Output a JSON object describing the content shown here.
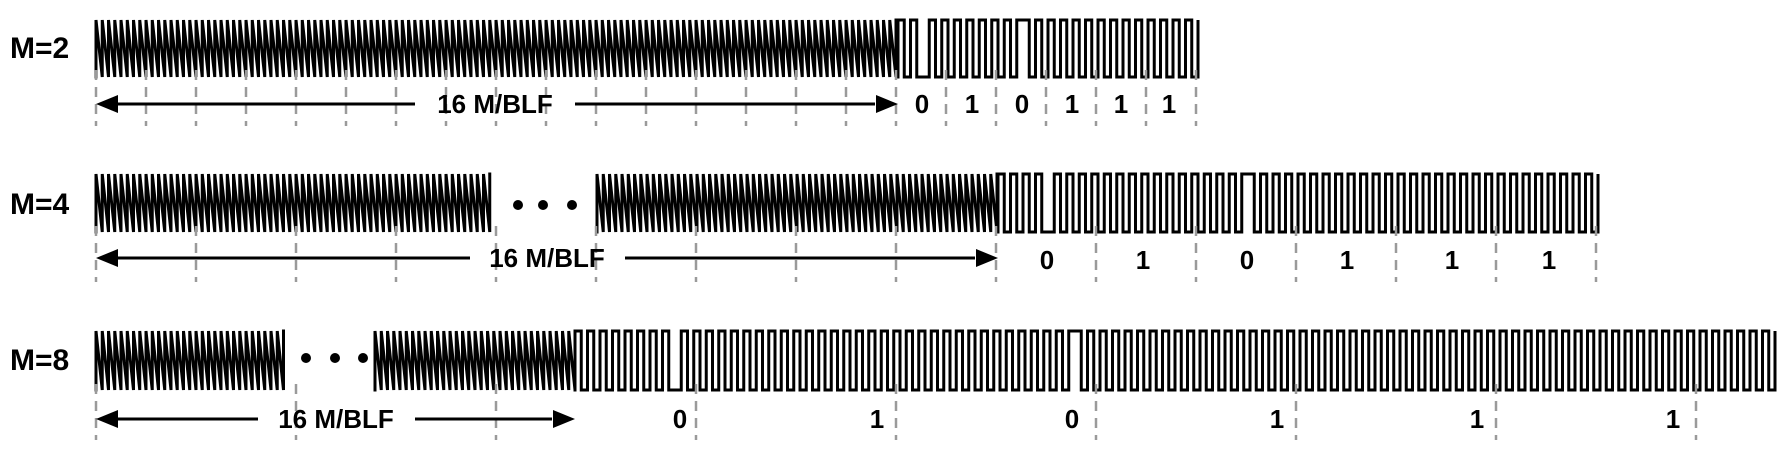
{
  "rows": [
    {
      "label": "M=2",
      "span_label": "16 M/BLF",
      "bits": [
        "0",
        "1",
        "0",
        "1",
        "1",
        "1"
      ]
    },
    {
      "label": "M=4",
      "span_label": "16 M/BLF",
      "bits": [
        "0",
        "1",
        "0",
        "1",
        "1",
        "1"
      ]
    },
    {
      "label": "M=8",
      "span_label": "16 M/BLF",
      "bits": [
        "0",
        "1",
        "0",
        "1",
        "1",
        "1"
      ]
    }
  ],
  "colors": {
    "signal": "#000000",
    "grid": "#9a9a9a"
  }
}
